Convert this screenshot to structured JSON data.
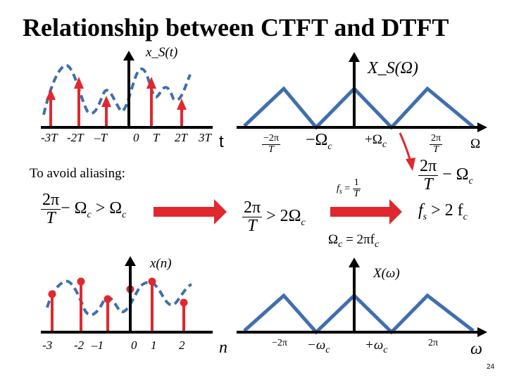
{
  "slide": {
    "title": "Relationship between CTFT and DTFT",
    "page_number": "24",
    "aliasing_note": "To avoid aliasing:"
  },
  "top_left": {
    "function_label": "x_S(t)",
    "ticks": [
      "-3T",
      "-2T",
      "–T",
      "0",
      "T",
      "2T",
      "3T"
    ],
    "axis_label": "t"
  },
  "top_right": {
    "function_label": "X_S(Ω)",
    "ticks": {
      "neg_2pi_num": "−2π",
      "neg_2pi_den": "T",
      "neg_omega_c": "−Ω",
      "pos_omega_c": "+Ω",
      "pos_2pi_num": "2π",
      "pos_2pi_den": "T",
      "axis": "Ω",
      "sub_c": "c"
    }
  },
  "conditions": {
    "left_num": "2π",
    "left_den": "T",
    "left_rest": "− Ω",
    "left_rest2": " > Ω",
    "sub_c": "c",
    "middle_num": "2π",
    "middle_den": "T",
    "middle_rest": " > 2Ω",
    "fs_label": "f",
    "fs_sub": "s",
    "fs_eq": " = ",
    "fs_num": "1",
    "fs_den": "T",
    "omega_c_eq": "Ω",
    "omega_c_rest": " = 2πf",
    "right_top_num": "2π",
    "right_top_den": "T",
    "right_top_rest": " − Ω",
    "right_bottom": "f",
    "right_bottom_sub": "s",
    "right_bottom_rest": " > 2 f"
  },
  "bottom_left": {
    "function_label": "x(n)",
    "ticks": [
      "-3",
      "-2",
      "–1",
      "0",
      "1",
      "2"
    ],
    "axis_label": "n"
  },
  "bottom_right": {
    "function_label": "X(ω)",
    "ticks": {
      "neg_2pi": "−2π",
      "neg_omega_c": "−ω",
      "pos_omega_c": "+ω",
      "pos_2pi": "2π",
      "axis": "ω",
      "sub_c": "c"
    }
  },
  "colors": {
    "impulse": "#e0282e",
    "spectrum": "#3f6fae",
    "dashed_curve": "#3f6fae",
    "axis": "#000000"
  }
}
